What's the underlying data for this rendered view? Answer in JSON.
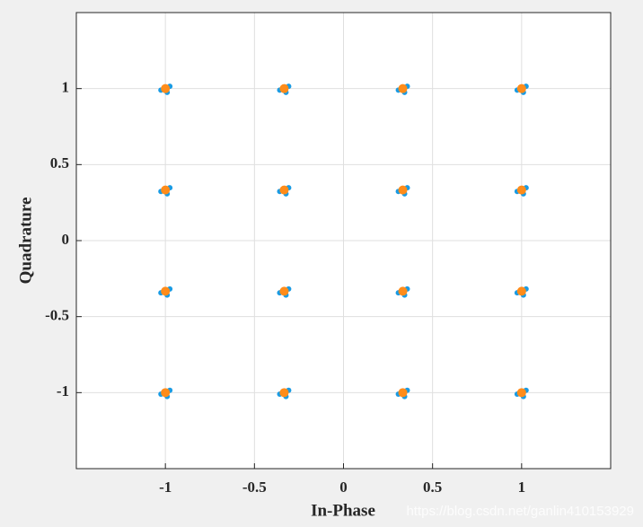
{
  "chart_data": {
    "type": "scatter",
    "xlabel": "In-Phase",
    "ylabel": "Quadrature",
    "watermark": "https://blog.csdn.net/ganlin410153929",
    "xlim": [
      -1.5,
      1.5
    ],
    "ylim": [
      -1.5,
      1.5
    ],
    "xticks": [
      -1,
      -0.5,
      0,
      0.5,
      1
    ],
    "yticks": [
      -1,
      -0.5,
      0,
      0.5,
      1
    ],
    "grid": true,
    "series": [
      {
        "color": "#1a9be3",
        "size": 3,
        "x": [
          -0.975,
          -1.025,
          -0.99,
          -0.975,
          -1.025,
          -0.99,
          -0.975,
          -1.025,
          -0.99,
          -0.975,
          -1.025,
          -0.99,
          -0.308,
          -0.358,
          -0.323,
          -0.308,
          -0.358,
          -0.323,
          -0.308,
          -0.358,
          -0.323,
          -0.308,
          -0.358,
          -0.323,
          0.358,
          0.308,
          0.343,
          0.358,
          0.308,
          0.343,
          0.358,
          0.308,
          0.343,
          0.358,
          0.308,
          0.343,
          1.025,
          0.975,
          1.01,
          1.025,
          0.975,
          1.01,
          1.025,
          0.975,
          1.01,
          1.025,
          0.975,
          1.01
        ],
        "y": [
          -0.985,
          -1.01,
          -1.025,
          -0.318,
          -0.343,
          -0.358,
          0.348,
          0.323,
          0.308,
          1.015,
          0.99,
          0.975,
          -0.985,
          -1.01,
          -1.025,
          -0.318,
          -0.343,
          -0.358,
          0.348,
          0.323,
          0.308,
          1.015,
          0.99,
          0.975,
          -0.985,
          -1.01,
          -1.025,
          -0.318,
          -0.343,
          -0.358,
          0.348,
          0.323,
          0.308,
          1.015,
          0.99,
          0.975,
          -0.985,
          -1.01,
          -1.025,
          -0.318,
          -0.343,
          -0.358,
          0.348,
          0.323,
          0.308,
          1.015,
          0.99,
          0.975
        ]
      },
      {
        "color": "#ff8c1a",
        "size": 5,
        "x": [
          -1,
          -1,
          -1,
          -1,
          -0.333,
          -0.333,
          -0.333,
          -0.333,
          0.333,
          0.333,
          0.333,
          0.333,
          1,
          1,
          1,
          1
        ],
        "y": [
          -1,
          -0.333,
          0.333,
          1,
          -1,
          -0.333,
          0.333,
          1,
          -1,
          -0.333,
          0.333,
          1,
          -1,
          -0.333,
          0.333,
          1
        ]
      }
    ]
  }
}
